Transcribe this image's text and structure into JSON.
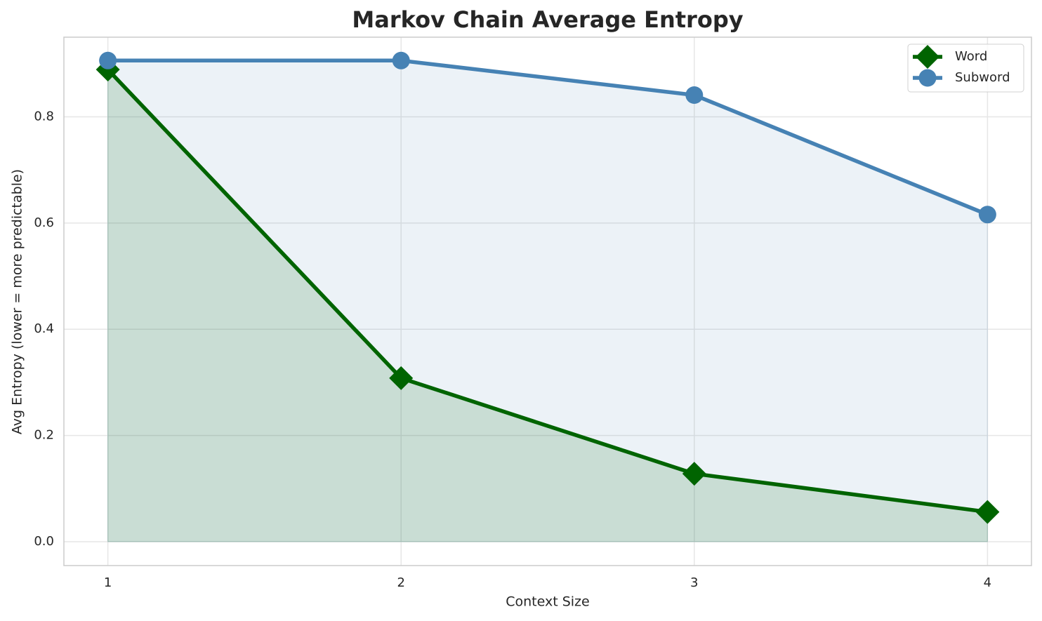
{
  "chart_data": {
    "type": "line",
    "title": "Markov Chain Average Entropy",
    "xlabel": "Context Size",
    "ylabel": "Avg Entropy (lower = more predictable)",
    "x": [
      1,
      2,
      3,
      4
    ],
    "series": [
      {
        "name": "Word",
        "color": "#006400",
        "marker": "diamond",
        "values": [
          0.889,
          0.308,
          0.128,
          0.056
        ]
      },
      {
        "name": "Subword",
        "color": "#4682b4",
        "marker": "circle",
        "values": [
          0.906,
          0.906,
          0.841,
          0.616
        ]
      }
    ],
    "fill": true,
    "xlim": [
      0.85,
      4.15
    ],
    "xticks": [
      1,
      2,
      3,
      4
    ],
    "ylim": [
      -0.045,
      0.95
    ],
    "yticks": [
      {
        "value": 0,
        "label": "0.0"
      },
      0.2,
      0.4,
      0.6,
      0.8
    ],
    "grid": true,
    "legend": "upper right"
  }
}
